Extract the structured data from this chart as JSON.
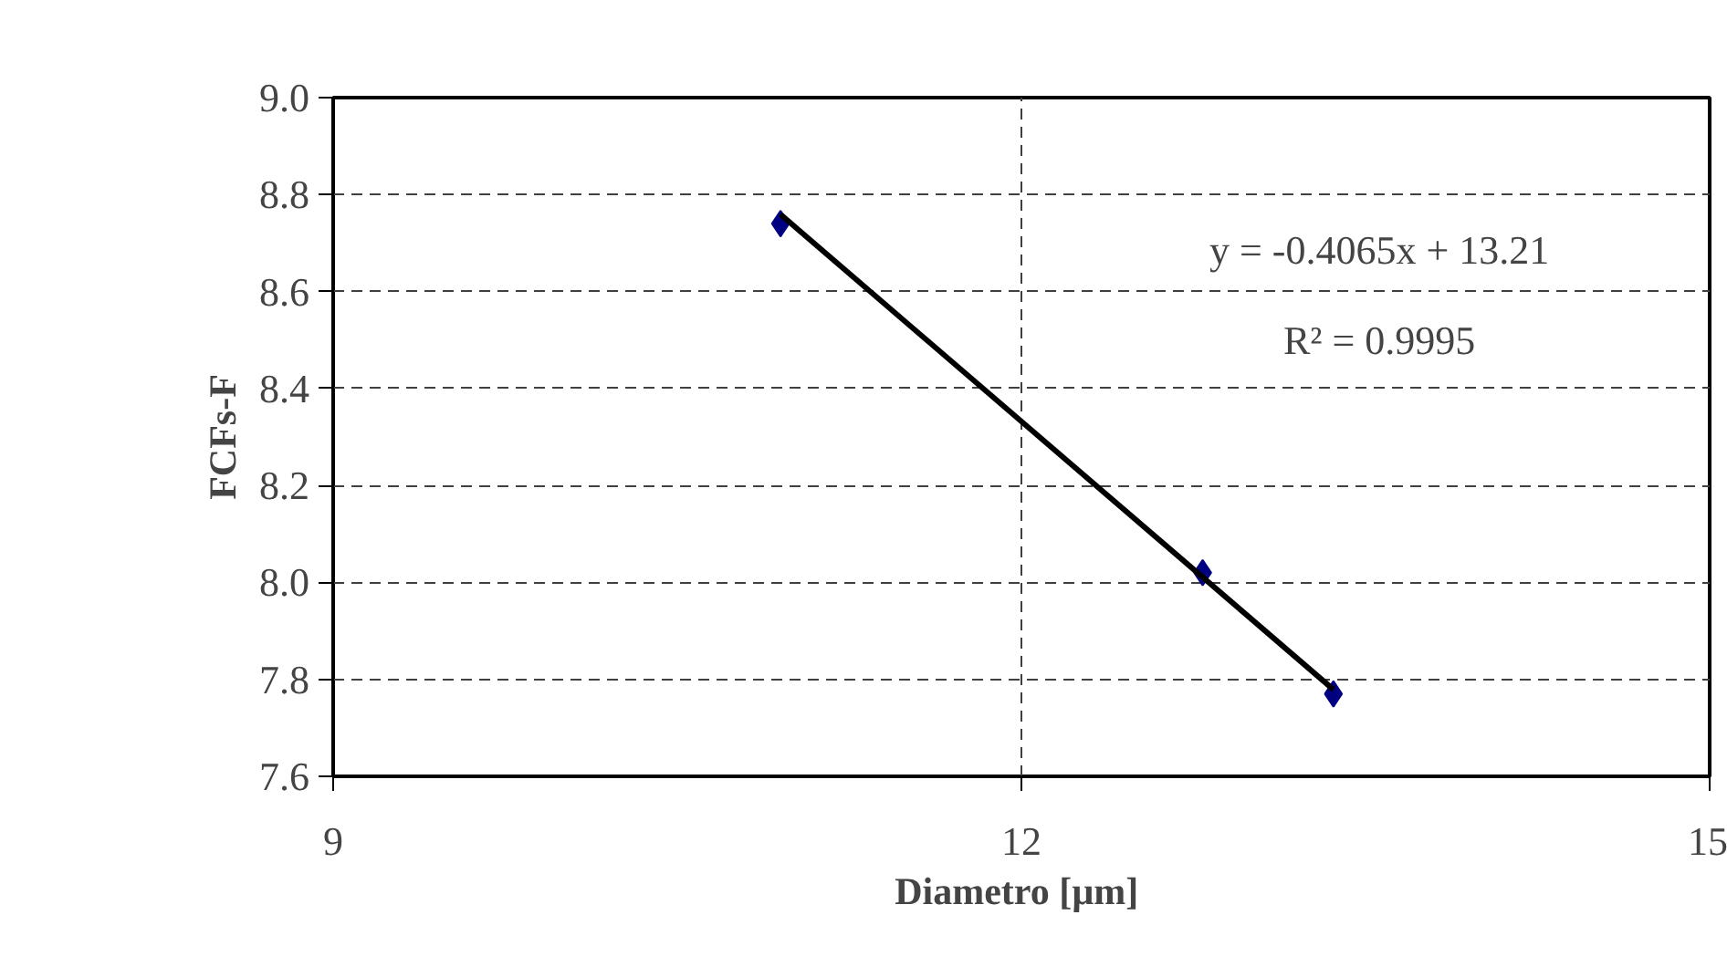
{
  "chart_data": {
    "type": "scatter",
    "xlabel": "Diametro  [µm]",
    "ylabel": "FCFs-F",
    "x": [
      10.95,
      12.79,
      13.36
    ],
    "series": [
      {
        "color": "#000080",
        "values": [
          8.74,
          8.02,
          7.77
        ],
        "marker": "diamond"
      },
      {
        "type": "line",
        "color": "#000000",
        "x": [
          10.95,
          13.36
        ],
        "values": [
          8.759,
          7.779
        ],
        "marker": "none",
        "line_style": "solid"
      }
    ],
    "xlim": [
      9,
      15
    ],
    "xticks": [
      9,
      12,
      15
    ],
    "ylim": [
      7.6,
      9.0
    ],
    "yticks": [
      {
        "value": 7.6,
        "label": "7.6"
      },
      {
        "value": 7.8,
        "label": "7.8"
      },
      {
        "value": 8.0,
        "label": "8.0"
      },
      {
        "value": 8.2,
        "label": "8.2"
      },
      {
        "value": 8.4,
        "label": "8.4"
      },
      {
        "value": 8.6,
        "label": "8.6"
      },
      {
        "value": 8.8,
        "label": "8.8"
      },
      {
        "value": 9.0,
        "label": "9.0"
      }
    ],
    "grid": true,
    "annotations": [
      "y = -0.4065x + 13.21",
      "R² = 0.9995"
    ]
  }
}
